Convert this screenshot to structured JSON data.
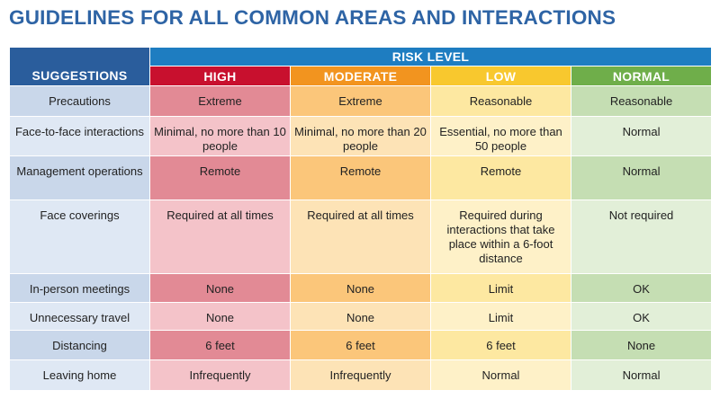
{
  "title": "GUIDELINES FOR ALL COMMON AREAS AND INTERACTIONS",
  "header": {
    "risk_level": "RISK LEVEL",
    "suggestions": "SUGGESTIONS",
    "levels": [
      "HIGH",
      "MODERATE",
      "LOW",
      "NORMAL"
    ]
  },
  "colors": {
    "title": "#2e64a5",
    "risk_header": "#1e7dc1",
    "suggestions_header": "#2a5d9c",
    "high": "#c8102e",
    "moderate": "#f2941f",
    "low": "#f8c82e",
    "normal": "#6fae4a"
  },
  "rows": [
    {
      "label": "Precautions",
      "high": "Extreme",
      "moderate": "Extreme",
      "low": "Reasonable",
      "normal": "Reasonable"
    },
    {
      "label": "Face-to-face interactions",
      "high": "Minimal, no more than 10 people",
      "moderate": "Minimal, no more than 20 people",
      "low": "Essential, no more than 50 people",
      "normal": "Normal"
    },
    {
      "label": "Management operations",
      "high": "Remote",
      "moderate": "Remote",
      "low": "Remote",
      "normal": "Normal"
    },
    {
      "label": "Face coverings",
      "high": "Required at all times",
      "moderate": "Required at all times",
      "low": "Required during interactions that take place within a 6-foot distance",
      "normal": "Not required"
    },
    {
      "label": "In-person meetings",
      "high": "None",
      "moderate": "None",
      "low": "Limit",
      "normal": "OK"
    },
    {
      "label": "Unnecessary travel",
      "high": "None",
      "moderate": "None",
      "low": "Limit",
      "normal": "OK"
    },
    {
      "label": "Distancing",
      "high": "6 feet",
      "moderate": "6 feet",
      "low": "6 feet",
      "normal": "None"
    },
    {
      "label": "Leaving home",
      "high": "Infrequently",
      "moderate": "Infrequently",
      "low": "Normal",
      "normal": "Normal"
    }
  ]
}
